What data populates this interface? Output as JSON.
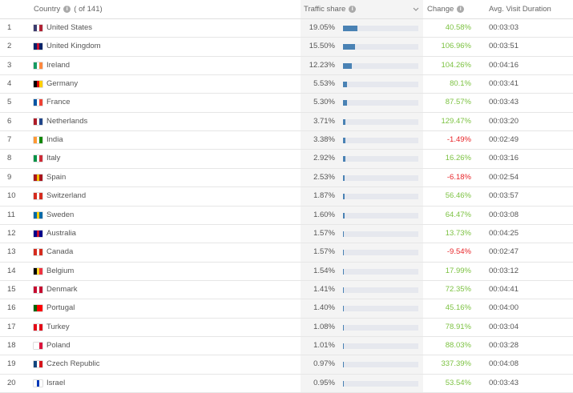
{
  "header": {
    "country": "Country",
    "count": "( of 141)",
    "traffic_share": "Traffic share",
    "change": "Change",
    "duration": "Avg. Visit Duration"
  },
  "rows": [
    {
      "rank": 1,
      "country": "United States",
      "share": "19.05%",
      "change": "40.58%",
      "duration": "00:03:03"
    },
    {
      "rank": 2,
      "country": "United Kingdom",
      "share": "15.50%",
      "change": "106.96%",
      "duration": "00:03:51"
    },
    {
      "rank": 3,
      "country": "Ireland",
      "share": "12.23%",
      "change": "104.26%",
      "duration": "00:04:16"
    },
    {
      "rank": 4,
      "country": "Germany",
      "share": "5.53%",
      "change": "80.1%",
      "duration": "00:03:41"
    },
    {
      "rank": 5,
      "country": "France",
      "share": "5.30%",
      "change": "87.57%",
      "duration": "00:03:43"
    },
    {
      "rank": 6,
      "country": "Netherlands",
      "share": "3.71%",
      "change": "129.47%",
      "duration": "00:03:20"
    },
    {
      "rank": 7,
      "country": "India",
      "share": "3.38%",
      "change": "-1.49%",
      "duration": "00:02:49"
    },
    {
      "rank": 8,
      "country": "Italy",
      "share": "2.92%",
      "change": "16.26%",
      "duration": "00:03:16"
    },
    {
      "rank": 9,
      "country": "Spain",
      "share": "2.53%",
      "change": "-6.18%",
      "duration": "00:02:54"
    },
    {
      "rank": 10,
      "country": "Switzerland",
      "share": "1.87%",
      "change": "56.46%",
      "duration": "00:03:57"
    },
    {
      "rank": 11,
      "country": "Sweden",
      "share": "1.60%",
      "change": "64.47%",
      "duration": "00:03:08"
    },
    {
      "rank": 12,
      "country": "Australia",
      "share": "1.57%",
      "change": "13.73%",
      "duration": "00:04:25"
    },
    {
      "rank": 13,
      "country": "Canada",
      "share": "1.57%",
      "change": "-9.54%",
      "duration": "00:02:47"
    },
    {
      "rank": 14,
      "country": "Belgium",
      "share": "1.54%",
      "change": "17.99%",
      "duration": "00:03:12"
    },
    {
      "rank": 15,
      "country": "Denmark",
      "share": "1.41%",
      "change": "72.35%",
      "duration": "00:04:41"
    },
    {
      "rank": 16,
      "country": "Portugal",
      "share": "1.40%",
      "change": "45.16%",
      "duration": "00:04:00"
    },
    {
      "rank": 17,
      "country": "Turkey",
      "share": "1.08%",
      "change": "78.91%",
      "duration": "00:03:04"
    },
    {
      "rank": 18,
      "country": "Poland",
      "share": "1.01%",
      "change": "88.03%",
      "duration": "00:03:28"
    },
    {
      "rank": 19,
      "country": "Czech Republic",
      "share": "0.97%",
      "change": "337.39%",
      "duration": "00:04:08"
    },
    {
      "rank": 20,
      "country": "Israel",
      "share": "0.95%",
      "change": "53.54%",
      "duration": "00:03:43"
    }
  ]
}
